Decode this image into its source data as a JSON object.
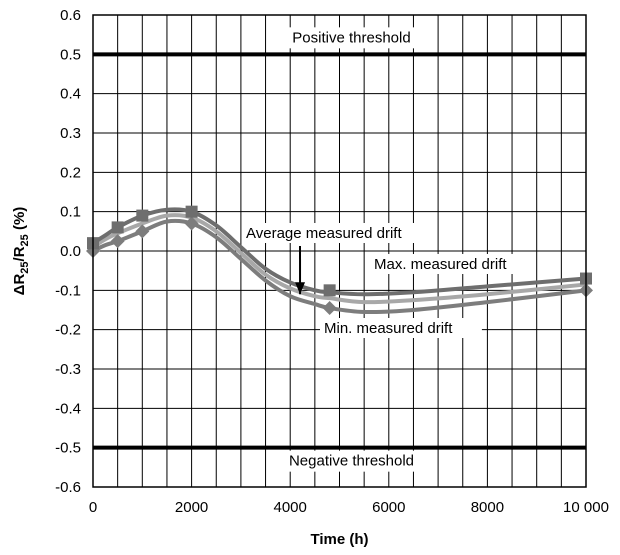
{
  "chart_data": {
    "type": "line",
    "xlabel": "Time (h)",
    "ylabel": {
      "prefix": "ΔR",
      "sub1": "25",
      "mid": "/R",
      "sub2": "25",
      "suffix": " (%)"
    },
    "xlim": [
      0,
      10000
    ],
    "ylim": [
      -0.6,
      0.6
    ],
    "x_ticks": [
      0,
      2000,
      4000,
      6000,
      8000,
      10000
    ],
    "x_tick_labels": [
      "0",
      "2000",
      "4000",
      "6000",
      "8000",
      "10 000"
    ],
    "y_ticks": [
      0.6,
      0.5,
      0.4,
      0.3,
      0.2,
      0.1,
      0.0,
      -0.1,
      -0.2,
      -0.3,
      -0.4,
      -0.5,
      -0.6
    ],
    "y_tick_labels": [
      "0.6",
      "0.5",
      "0.4",
      "0.3",
      "0.2",
      "0.1",
      "0.0",
      "-0.1",
      "-0.2",
      "-0.3",
      "-0.4",
      "-0.5",
      "-0.6"
    ],
    "grid": "vertical every 500 h, horizontal every 0.1",
    "thresholds": [
      {
        "label": "Positive threshold",
        "value": 0.5
      },
      {
        "label": "Negative threshold",
        "value": -0.5
      }
    ],
    "series": [
      {
        "name": "Max. measured drift",
        "color": "#6e6e6e",
        "marker": "square",
        "points": [
          [
            0,
            0.02
          ],
          [
            500,
            0.06
          ],
          [
            1000,
            0.09
          ],
          [
            2000,
            0.1
          ],
          [
            4800,
            -0.1
          ],
          [
            10000,
            -0.07
          ]
        ],
        "curve": [
          [
            0,
            0.02
          ],
          [
            250,
            0.04
          ],
          [
            500,
            0.06
          ],
          [
            1000,
            0.09
          ],
          [
            1500,
            0.105
          ],
          [
            2000,
            0.1
          ],
          [
            2500,
            0.065
          ],
          [
            3000,
            0.01
          ],
          [
            3500,
            -0.045
          ],
          [
            4000,
            -0.08
          ],
          [
            4500,
            -0.1
          ],
          [
            4800,
            -0.105
          ],
          [
            5500,
            -0.11
          ],
          [
            6500,
            -0.105
          ],
          [
            8000,
            -0.09
          ],
          [
            10000,
            -0.07
          ]
        ]
      },
      {
        "name": "Average measured drift",
        "color": "#a8a8a8",
        "marker": "none",
        "points": [],
        "curve": [
          [
            0,
            0.01
          ],
          [
            250,
            0.03
          ],
          [
            500,
            0.045
          ],
          [
            1000,
            0.07
          ],
          [
            1500,
            0.09
          ],
          [
            2000,
            0.085
          ],
          [
            2500,
            0.05
          ],
          [
            3000,
            -0.005
          ],
          [
            3500,
            -0.06
          ],
          [
            4000,
            -0.095
          ],
          [
            4500,
            -0.115
          ],
          [
            4800,
            -0.12
          ],
          [
            5500,
            -0.13
          ],
          [
            6500,
            -0.125
          ],
          [
            8000,
            -0.11
          ],
          [
            10000,
            -0.085
          ]
        ]
      },
      {
        "name": "Min. measured drift",
        "color": "#7d7d7d",
        "marker": "diamond",
        "points": [
          [
            0,
            0.0
          ],
          [
            500,
            0.025
          ],
          [
            1000,
            0.05
          ],
          [
            2000,
            0.07
          ],
          [
            4800,
            -0.145
          ],
          [
            10000,
            -0.1
          ]
        ],
        "curve": [
          [
            0,
            0.0
          ],
          [
            250,
            0.015
          ],
          [
            500,
            0.025
          ],
          [
            1000,
            0.05
          ],
          [
            1500,
            0.075
          ],
          [
            2000,
            0.07
          ],
          [
            2500,
            0.035
          ],
          [
            3000,
            -0.02
          ],
          [
            3500,
            -0.075
          ],
          [
            4000,
            -0.115
          ],
          [
            4500,
            -0.135
          ],
          [
            4800,
            -0.145
          ],
          [
            5500,
            -0.155
          ],
          [
            6500,
            -0.15
          ],
          [
            8000,
            -0.13
          ],
          [
            10000,
            -0.1
          ]
        ]
      }
    ],
    "annotations": {
      "average_label": "Average measured drift",
      "max_label": "Max. measured drift",
      "min_label": "Min. measured drift"
    }
  }
}
